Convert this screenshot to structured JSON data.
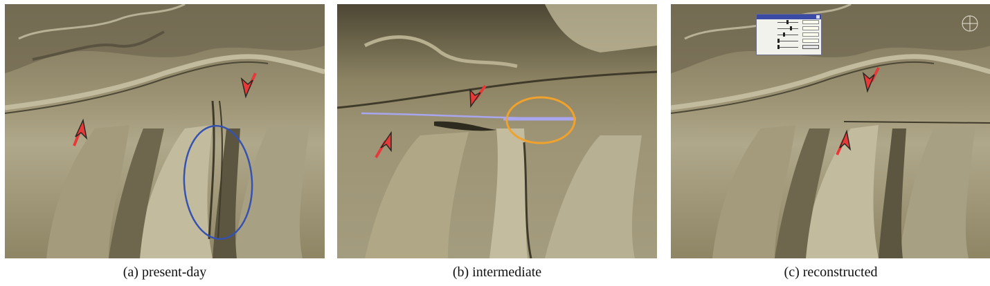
{
  "figure": {
    "panels": [
      {
        "id": "a",
        "caption": "(a)  present-day"
      },
      {
        "id": "b",
        "caption": "(b)  intermediate"
      },
      {
        "id": "c",
        "caption": "(c)  reconstructed"
      }
    ],
    "colors": {
      "terrain_light": "#b9b295",
      "terrain_mid": "#8f8665",
      "terrain_dark": "#4e4833",
      "arrow_red": "#e8393a",
      "arrow_dark": "#2a2620",
      "ellipse_blue": "#3552b0",
      "ellipse_orange": "#f0a22c",
      "path_lilac": "#a9a6f0",
      "dialog_title": "#3b4aa5"
    }
  }
}
